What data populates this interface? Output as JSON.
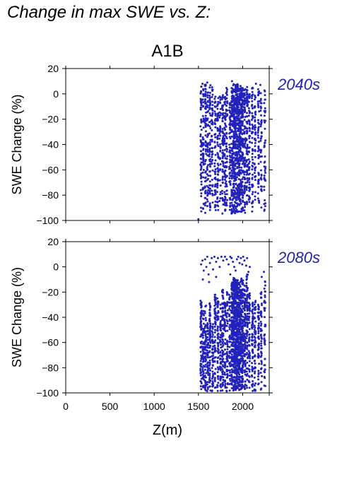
{
  "figure_title": "Change in max SWE vs. Z:",
  "chart_data": {
    "type": "scatter",
    "title": "A1B",
    "xlabel": "Z(m)",
    "ylabel": "SWE Change (%)",
    "xlim": [
      0,
      2300
    ],
    "ylim": [
      -100,
      20
    ],
    "xticks": [
      0,
      500,
      1000,
      1500,
      2000
    ],
    "yticks": [
      20,
      0,
      -20,
      -40,
      -60,
      -80,
      -100
    ],
    "grid": false,
    "point_color": "#2222bb",
    "label_color": "#2222aa",
    "panels": [
      {
        "label": "2040s",
        "series": [
          {
            "columns": [
              {
                "x": 1530,
                "ymin": -94,
                "ymax": 6,
                "n": 60
              },
              {
                "x": 1555,
                "ymin": -92,
                "ymax": 5,
                "n": 50
              },
              {
                "x": 1580,
                "ymin": -95,
                "ymax": 8,
                "n": 70
              },
              {
                "x": 1605,
                "ymin": -90,
                "ymax": 4,
                "n": 50
              },
              {
                "x": 1630,
                "ymin": -93,
                "ymax": 7,
                "n": 60
              },
              {
                "x": 1655,
                "ymin": -88,
                "ymax": 6,
                "n": 45
              },
              {
                "x": 1690,
                "ymin": -94,
                "ymax": 3,
                "n": 55
              },
              {
                "x": 1720,
                "ymin": -92,
                "ymax": 0,
                "n": 60
              },
              {
                "x": 1745,
                "ymin": -90,
                "ymax": 0,
                "n": 40
              },
              {
                "x": 1775,
                "ymin": -95,
                "ymax": 2,
                "n": 70
              },
              {
                "x": 1800,
                "ymin": -93,
                "ymax": 0,
                "n": 60
              },
              {
                "x": 1820,
                "ymin": -91,
                "ymax": 5,
                "n": 50
              },
              {
                "x": 1855,
                "ymin": -92,
                "ymax": 0,
                "n": 60
              },
              {
                "x": 1880,
                "ymin": -95,
                "ymax": 5,
                "n": 110
              },
              {
                "x": 1900,
                "ymin": -96,
                "ymax": 8,
                "n": 130
              },
              {
                "x": 1920,
                "ymin": -95,
                "ymax": 7,
                "n": 130
              },
              {
                "x": 1940,
                "ymin": -94,
                "ymax": 8,
                "n": 120
              },
              {
                "x": 1960,
                "ymin": -96,
                "ymax": 6,
                "n": 110
              },
              {
                "x": 1980,
                "ymin": -94,
                "ymax": 7,
                "n": 100
              },
              {
                "x": 2000,
                "ymin": -93,
                "ymax": 5,
                "n": 90
              },
              {
                "x": 2025,
                "ymin": -95,
                "ymax": 4,
                "n": 80
              },
              {
                "x": 2050,
                "ymin": -92,
                "ymax": 6,
                "n": 70
              },
              {
                "x": 2075,
                "ymin": -90,
                "ymax": 0,
                "n": 60
              },
              {
                "x": 2110,
                "ymin": -94,
                "ymax": 5,
                "n": 55
              },
              {
                "x": 2140,
                "ymin": -88,
                "ymax": 0,
                "n": 45
              },
              {
                "x": 2180,
                "ymin": -92,
                "ymax": 6,
                "n": 50
              },
              {
                "x": 2210,
                "ymin": -90,
                "ymax": 5,
                "n": 45
              },
              {
                "x": 2250,
                "ymin": -93,
                "ymax": 3,
                "n": 45
              }
            ],
            "points": [
              {
                "x": 1500,
                "y": -99
              },
              {
                "x": 1545,
                "y": 8
              },
              {
                "x": 1600,
                "y": 9
              },
              {
                "x": 1880,
                "y": 10
              },
              {
                "x": 2200,
                "y": 7
              },
              {
                "x": 2150,
                "y": 8
              }
            ]
          }
        ]
      },
      {
        "label": "2080s",
        "series": [
          {
            "columns": [
              {
                "x": 1530,
                "ymin": -99,
                "ymax": -25,
                "n": 70
              },
              {
                "x": 1555,
                "ymin": -99,
                "ymax": -35,
                "n": 60
              },
              {
                "x": 1580,
                "ymin": -99,
                "ymax": -30,
                "n": 60
              },
              {
                "x": 1605,
                "ymin": -99,
                "ymax": -42,
                "n": 50
              },
              {
                "x": 1630,
                "ymin": -99,
                "ymax": -28,
                "n": 70
              },
              {
                "x": 1660,
                "ymin": -99,
                "ymax": -45,
                "n": 50
              },
              {
                "x": 1690,
                "ymin": -99,
                "ymax": -22,
                "n": 65
              },
              {
                "x": 1720,
                "ymin": -99,
                "ymax": -25,
                "n": 60
              },
              {
                "x": 1750,
                "ymin": -99,
                "ymax": -30,
                "n": 55
              },
              {
                "x": 1775,
                "ymin": -99,
                "ymax": -18,
                "n": 75
              },
              {
                "x": 1800,
                "ymin": -99,
                "ymax": -25,
                "n": 60
              },
              {
                "x": 1825,
                "ymin": -99,
                "ymax": -20,
                "n": 60
              },
              {
                "x": 1855,
                "ymin": -99,
                "ymax": -22,
                "n": 55
              },
              {
                "x": 1880,
                "ymin": -99,
                "ymax": -12,
                "n": 120
              },
              {
                "x": 1900,
                "ymin": -99,
                "ymax": -8,
                "n": 140
              },
              {
                "x": 1920,
                "ymin": -99,
                "ymax": -10,
                "n": 140
              },
              {
                "x": 1940,
                "ymin": -99,
                "ymax": -10,
                "n": 130
              },
              {
                "x": 1960,
                "ymin": -99,
                "ymax": -12,
                "n": 120
              },
              {
                "x": 1980,
                "ymin": -99,
                "ymax": -8,
                "n": 110
              },
              {
                "x": 2000,
                "ymin": -99,
                "ymax": -10,
                "n": 100
              },
              {
                "x": 2025,
                "ymin": -99,
                "ymax": -15,
                "n": 90
              },
              {
                "x": 2050,
                "ymin": -99,
                "ymax": -5,
                "n": 80
              },
              {
                "x": 2075,
                "ymin": -99,
                "ymax": -20,
                "n": 60
              },
              {
                "x": 2110,
                "ymin": -99,
                "ymax": -28,
                "n": 60
              },
              {
                "x": 2140,
                "ymin": -99,
                "ymax": -25,
                "n": 50
              },
              {
                "x": 2180,
                "ymin": -99,
                "ymax": -30,
                "n": 55
              },
              {
                "x": 2210,
                "ymin": -99,
                "ymax": -20,
                "n": 50
              },
              {
                "x": 2250,
                "ymin": -99,
                "ymax": -10,
                "n": 45
              }
            ],
            "points": [
              {
                "x": 1530,
                "y": 2
              },
              {
                "x": 1545,
                "y": 5
              },
              {
                "x": 1560,
                "y": -3
              },
              {
                "x": 1575,
                "y": 6
              },
              {
                "x": 1590,
                "y": 0
              },
              {
                "x": 1600,
                "y": 8
              },
              {
                "x": 1615,
                "y": -6
              },
              {
                "x": 1630,
                "y": 3
              },
              {
                "x": 1650,
                "y": 7
              },
              {
                "x": 1665,
                "y": -2
              },
              {
                "x": 1680,
                "y": 8
              },
              {
                "x": 1700,
                "y": 4
              },
              {
                "x": 1720,
                "y": 7
              },
              {
                "x": 1740,
                "y": 0
              },
              {
                "x": 1760,
                "y": 8
              },
              {
                "x": 1780,
                "y": 5
              },
              {
                "x": 1800,
                "y": 8
              },
              {
                "x": 1820,
                "y": 6
              },
              {
                "x": 1840,
                "y": 2
              },
              {
                "x": 1860,
                "y": 8
              },
              {
                "x": 1875,
                "y": 7
              },
              {
                "x": 1890,
                "y": 4
              },
              {
                "x": 1905,
                "y": 0
              },
              {
                "x": 1920,
                "y": -3
              },
              {
                "x": 1935,
                "y": 6
              },
              {
                "x": 1950,
                "y": 8
              },
              {
                "x": 1965,
                "y": 3
              },
              {
                "x": 1980,
                "y": 7
              },
              {
                "x": 1995,
                "y": 2
              },
              {
                "x": 2005,
                "y": 8
              },
              {
                "x": 2020,
                "y": 5
              },
              {
                "x": 2040,
                "y": 1
              },
              {
                "x": 2050,
                "y": 7
              },
              {
                "x": 2065,
                "y": -4
              },
              {
                "x": 2080,
                "y": 0
              },
              {
                "x": 1550,
                "y": -10
              },
              {
                "x": 1620,
                "y": -12
              },
              {
                "x": 1700,
                "y": -8
              },
              {
                "x": 1860,
                "y": -6
              },
              {
                "x": 2215,
                "y": -8
              },
              {
                "x": 2240,
                "y": -4
              }
            ]
          }
        ]
      }
    ]
  }
}
